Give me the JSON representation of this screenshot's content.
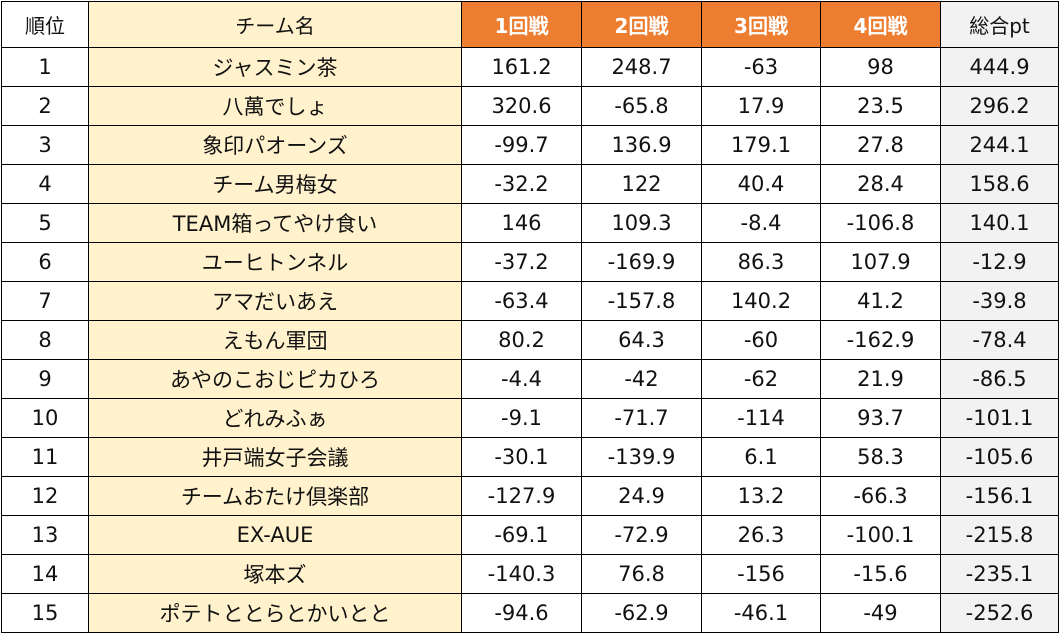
{
  "table": {
    "headers": {
      "rank": "順位",
      "team": "チーム名",
      "round1": "1回戦",
      "round2": "2回戦",
      "round3": "3回戦",
      "round4": "4回戦",
      "total": "総合pt"
    },
    "rows": [
      {
        "rank": "1",
        "team": "ジャスミン茶",
        "r1": "161.2",
        "r2": "248.7",
        "r3": "-63",
        "r4": "98",
        "total": "444.9"
      },
      {
        "rank": "2",
        "team": "八萬でしょ",
        "r1": "320.6",
        "r2": "-65.8",
        "r3": "17.9",
        "r4": "23.5",
        "total": "296.2"
      },
      {
        "rank": "3",
        "team": "象印パオーンズ",
        "r1": "-99.7",
        "r2": "136.9",
        "r3": "179.1",
        "r4": "27.8",
        "total": "244.1"
      },
      {
        "rank": "4",
        "team": "チーム男梅女",
        "r1": "-32.2",
        "r2": "122",
        "r3": "40.4",
        "r4": "28.4",
        "total": "158.6"
      },
      {
        "rank": "5",
        "team": "TEAM箱ってやけ食い",
        "r1": "146",
        "r2": "109.3",
        "r3": "-8.4",
        "r4": "-106.8",
        "total": "140.1"
      },
      {
        "rank": "6",
        "team": "ユーヒトンネル",
        "r1": "-37.2",
        "r2": "-169.9",
        "r3": "86.3",
        "r4": "107.9",
        "total": "-12.9"
      },
      {
        "rank": "7",
        "team": "アマだいあえ",
        "r1": "-63.4",
        "r2": "-157.8",
        "r3": "140.2",
        "r4": "41.2",
        "total": "-39.8"
      },
      {
        "rank": "8",
        "team": "えもん軍団",
        "r1": "80.2",
        "r2": "64.3",
        "r3": "-60",
        "r4": "-162.9",
        "total": "-78.4"
      },
      {
        "rank": "9",
        "team": "あやのこおじピカひろ",
        "r1": "-4.4",
        "r2": "-42",
        "r3": "-62",
        "r4": "21.9",
        "total": "-86.5"
      },
      {
        "rank": "10",
        "team": "どれみふぁ",
        "r1": "-9.1",
        "r2": "-71.7",
        "r3": "-114",
        "r4": "93.7",
        "total": "-101.1"
      },
      {
        "rank": "11",
        "team": "井戸端女子会議",
        "r1": "-30.1",
        "r2": "-139.9",
        "r3": "6.1",
        "r4": "58.3",
        "total": "-105.6"
      },
      {
        "rank": "12",
        "team": "チームおたけ倶楽部",
        "r1": "-127.9",
        "r2": "24.9",
        "r3": "13.2",
        "r4": "-66.3",
        "total": "-156.1"
      },
      {
        "rank": "13",
        "team": "EX-AUE",
        "r1": "-69.1",
        "r2": "-72.9",
        "r3": "26.3",
        "r4": "-100.1",
        "total": "-215.8"
      },
      {
        "rank": "14",
        "team": "塚本ズ",
        "r1": "-140.3",
        "r2": "76.8",
        "r3": "-156",
        "r4": "-15.6",
        "total": "-235.1"
      },
      {
        "rank": "15",
        "team": "ポテトととらとかいとと",
        "r1": "-94.6",
        "r2": "-62.9",
        "r3": "-46.1",
        "r4": "-49",
        "total": "-252.6"
      }
    ]
  },
  "colors": {
    "round_header_bg": "#ed7d31",
    "round_header_text": "#ffffff",
    "team_column_bg": "#fff2cc",
    "total_column_bg": "#f2f2f2",
    "grid_line": "#000000"
  }
}
